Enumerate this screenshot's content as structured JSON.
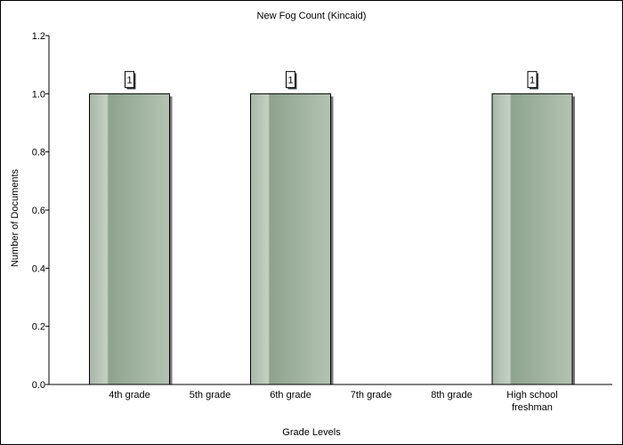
{
  "chart_data": {
    "type": "bar",
    "title": "New Fog Count (Kincaid)",
    "xlabel": "Grade Levels",
    "ylabel": "Number of Documents",
    "categories": [
      "4th grade",
      "5th grade",
      "6th grade",
      "7th grade",
      "8th grade",
      "High school freshman"
    ],
    "category_lines": [
      [
        "4th grade"
      ],
      [
        "5th grade"
      ],
      [
        "6th grade"
      ],
      [
        "7th grade"
      ],
      [
        "8th grade"
      ],
      [
        "High school",
        "freshman"
      ]
    ],
    "values": [
      1,
      0,
      1,
      0,
      0,
      1
    ],
    "data_labels": [
      "1",
      "",
      "1",
      "",
      "",
      "1"
    ],
    "ylim": [
      0,
      1.2
    ],
    "yticks": [
      "0.0",
      "0.2",
      "0.4",
      "0.6",
      "0.8",
      "1.0",
      "1.2"
    ],
    "grid": false,
    "bar_color": "#8fa48f"
  }
}
